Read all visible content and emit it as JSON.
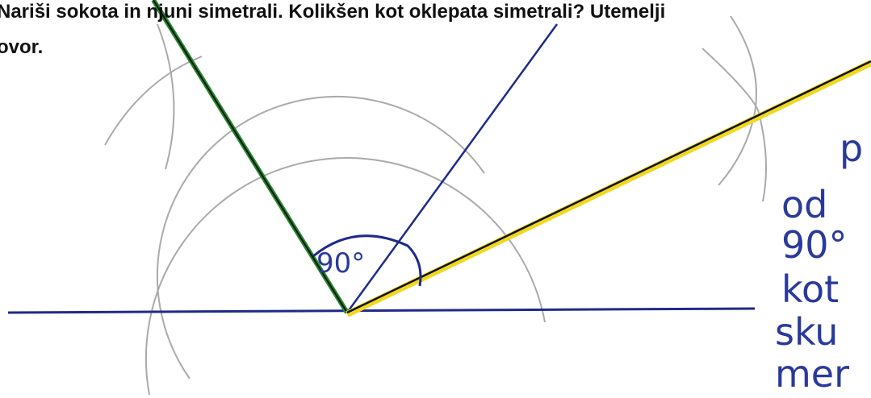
{
  "question": {
    "line1": "Nariši sokota in njuni simetrali. Kolikšen kot oklepata simetrali? Utemelji",
    "line2": "ovor."
  },
  "handwriting": {
    "angle_label": "90°",
    "notes": [
      "p",
      "od",
      "90°",
      "kot",
      "sku",
      "mer"
    ]
  }
}
